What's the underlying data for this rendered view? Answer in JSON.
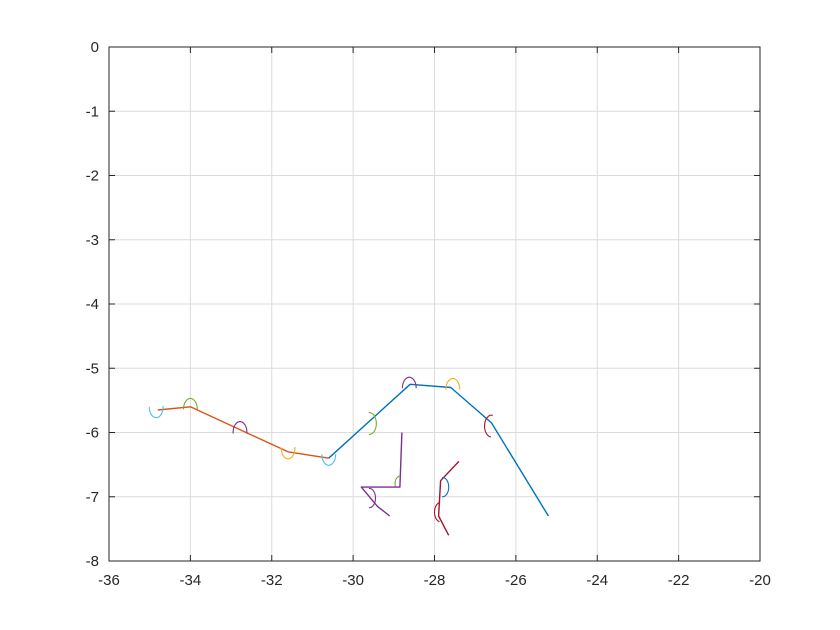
{
  "chart_data": {
    "type": "line",
    "title": "",
    "xlabel": "",
    "ylabel": "",
    "xlim": [
      -36,
      -20
    ],
    "ylim": [
      -8,
      0
    ],
    "x_ticks": [
      -36,
      -34,
      -32,
      -30,
      -28,
      -26,
      -24,
      -22,
      -20
    ],
    "y_ticks": [
      0,
      -1,
      -2,
      -3,
      -4,
      -5,
      -6,
      -7,
      -8
    ],
    "x_tick_labels": [
      "-36",
      "-34",
      "-32",
      "-30",
      "-28",
      "-26",
      "-24",
      "-22",
      "-20"
    ],
    "y_tick_labels": [
      "0",
      "-1",
      "-2",
      "-3",
      "-4",
      "-5",
      "-6",
      "-7",
      "-8"
    ],
    "grid": true,
    "box": true,
    "series": [
      {
        "color": "#D95319",
        "x": [
          -34.8,
          -34.0,
          -31.6,
          -30.6
        ],
        "y": [
          -5.65,
          -5.6,
          -6.3,
          -6.4
        ]
      },
      {
        "color": "#0072BD",
        "x": [
          -30.6,
          -28.6,
          -27.6,
          -26.6,
          -25.2
        ],
        "y": [
          -6.4,
          -5.25,
          -5.3,
          -5.85,
          -7.3
        ]
      },
      {
        "color": "#7E2F8E",
        "x": [
          -28.8,
          -28.85,
          -29.8,
          -29.4,
          -29.1
        ],
        "y": [
          -6.0,
          -6.85,
          -6.85,
          -7.15,
          -7.3
        ]
      },
      {
        "color": "#A2142F",
        "x": [
          -27.4,
          -27.85,
          -27.9,
          -27.65
        ],
        "y": [
          -6.45,
          -6.75,
          -7.3,
          -7.6
        ]
      }
    ],
    "arcs": [
      {
        "color": "#4DBEEE",
        "cx": -34.84,
        "cy": -5.6,
        "r": 0.17,
        "a0": -180,
        "a1": 5
      },
      {
        "color": "#77AC30",
        "cx": -34.0,
        "cy": -5.64,
        "r": 0.17,
        "a0": 0,
        "a1": 180
      },
      {
        "color": "#7E2F8E",
        "cx": -32.78,
        "cy": -6.0,
        "r": 0.17,
        "a0": -5,
        "a1": 185
      },
      {
        "color": "#EDB120",
        "cx": -31.6,
        "cy": -6.24,
        "r": 0.17,
        "a0": -180,
        "a1": 5
      },
      {
        "color": "#4DBEEE",
        "cx": -30.6,
        "cy": -6.34,
        "r": 0.17,
        "a0": -180,
        "a1": 0
      },
      {
        "color": "#77AC30",
        "cx": -29.6,
        "cy": -5.86,
        "r": 0.17,
        "a0": -95,
        "a1": 95
      },
      {
        "color": "#7E2F8E",
        "cx": -28.62,
        "cy": -5.31,
        "r": 0.17,
        "a0": 0,
        "a1": 180
      },
      {
        "color": "#EDB120",
        "cx": -27.55,
        "cy": -5.33,
        "r": 0.17,
        "a0": 0,
        "a1": 180
      },
      {
        "color": "#A2142F",
        "cx": -26.6,
        "cy": -5.9,
        "r": 0.17,
        "a0": 80,
        "a1": 265
      },
      {
        "color": "#0072BD",
        "cx": -27.8,
        "cy": -6.85,
        "r": 0.15,
        "a0": -95,
        "a1": 95
      },
      {
        "color": "#A2142F",
        "cx": -27.85,
        "cy": -7.24,
        "r": 0.15,
        "a0": 95,
        "a1": 260
      },
      {
        "color": "#7E2F8E",
        "cx": -29.6,
        "cy": -7.02,
        "r": 0.15,
        "a0": -95,
        "a1": 95
      },
      {
        "color": "#77AC30",
        "cx": -28.85,
        "cy": -6.8,
        "r": 0.12,
        "a0": 90,
        "a1": 200
      }
    ]
  }
}
